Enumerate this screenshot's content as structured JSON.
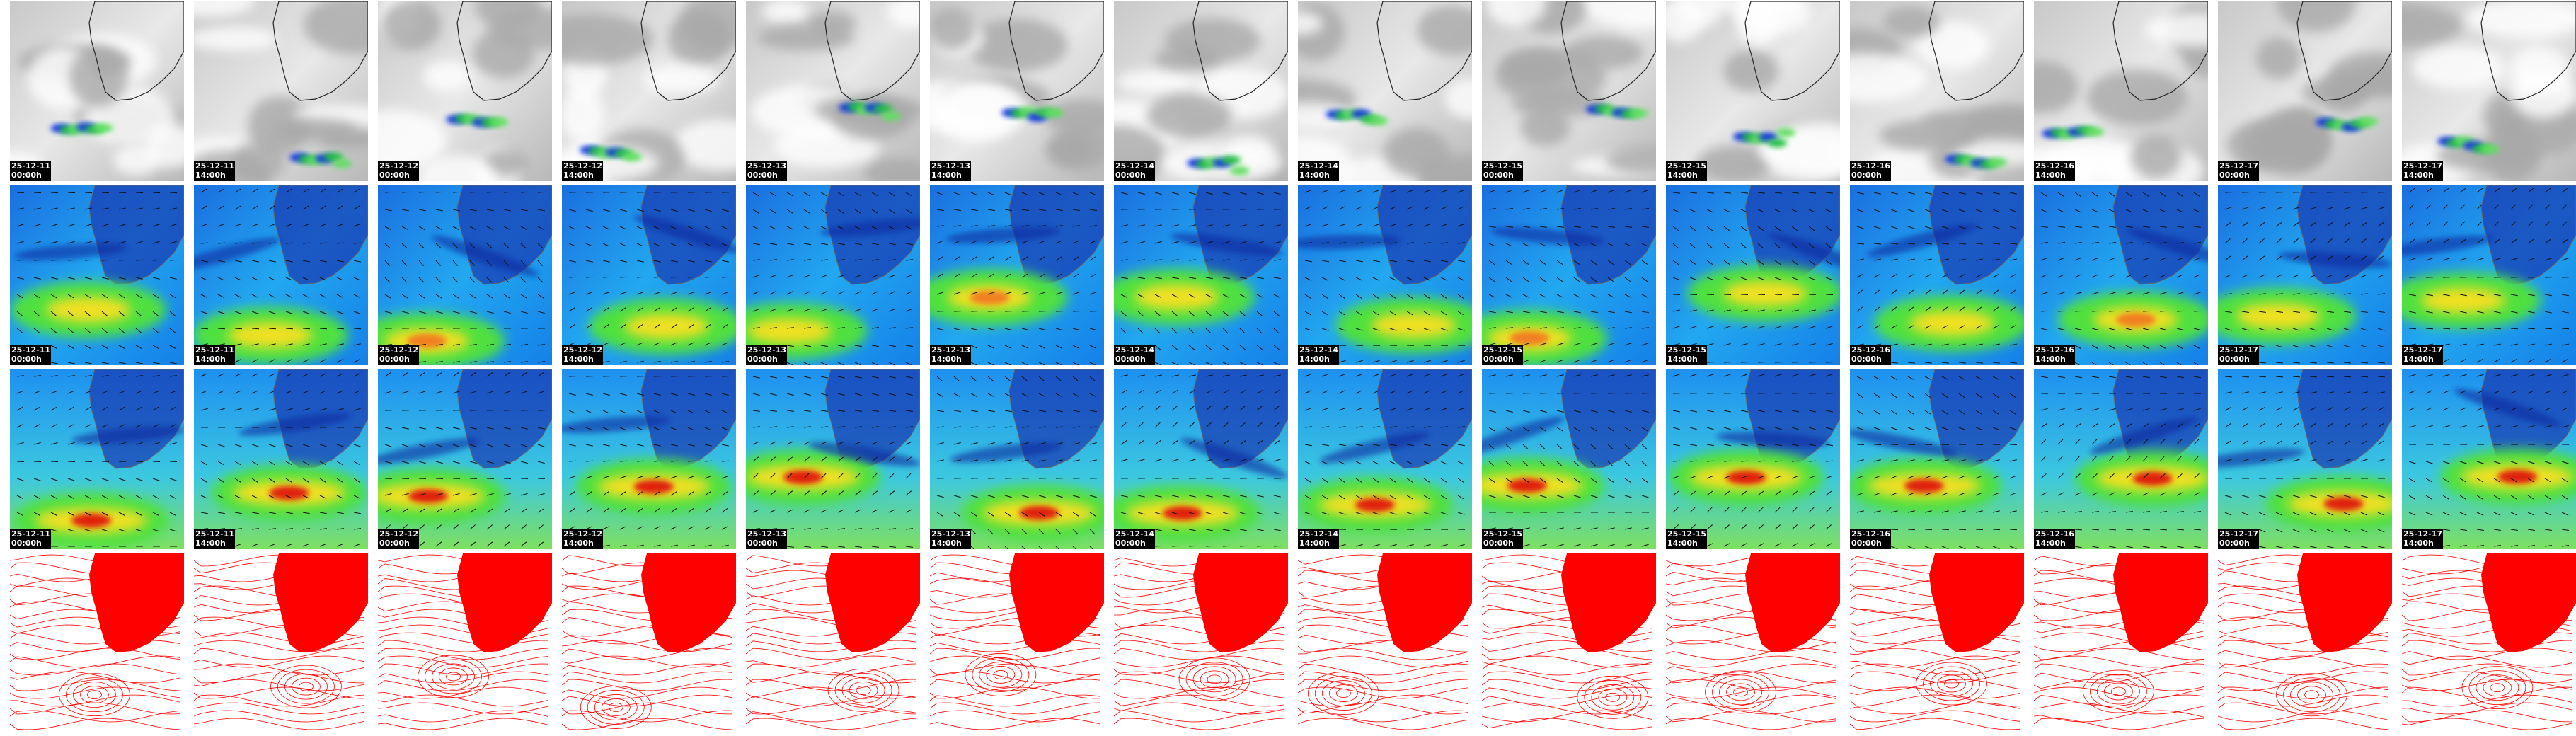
{
  "columns": [
    {
      "date": "25-12-11",
      "time": "00:00h"
    },
    {
      "date": "25-12-11",
      "time": "14:00h"
    },
    {
      "date": "25-12-12",
      "time": "00:00h"
    },
    {
      "date": "25-12-12",
      "time": "14:00h"
    },
    {
      "date": "25-12-13",
      "time": "00:00h"
    },
    {
      "date": "25-12-13",
      "time": "14:00h"
    },
    {
      "date": "25-12-14",
      "time": "00:00h"
    },
    {
      "date": "25-12-14",
      "time": "14:00h"
    },
    {
      "date": "25-12-15",
      "time": "00:00h"
    },
    {
      "date": "25-12-15",
      "time": "14:00h"
    },
    {
      "date": "25-12-16",
      "time": "00:00h"
    },
    {
      "date": "25-12-16",
      "time": "14:00h"
    },
    {
      "date": "25-12-17",
      "time": "00:00h"
    },
    {
      "date": "25-12-17",
      "time": "14:00h"
    }
  ]
}
